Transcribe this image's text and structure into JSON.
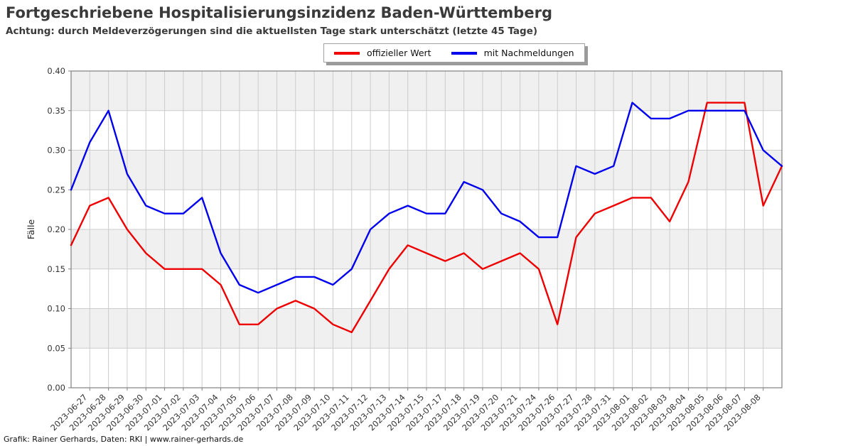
{
  "header": {
    "title": "Fortgeschriebene Hospitalisierungsinzidenz Baden-Württemberg",
    "subtitle": "Achtung: durch Meldeverzögerungen sind die aktuellsten Tage stark unterschätzt (letzte 45 Tage)"
  },
  "footer": {
    "credit": "Grafik: Rainer Gerhards, Daten: RKI | www.rainer-gerhards.de"
  },
  "colors": {
    "official": "#ee0000",
    "nachmeldungen": "#0000ee",
    "band_gray": "#f0f0f0",
    "gridline": "#cccccc",
    "spine": "#808080",
    "tick_text": "#333333"
  },
  "chart_data": {
    "type": "line",
    "title": "Fortgeschriebene Hospitalisierungsinzidenz Baden-Württemberg",
    "xlabel": "",
    "ylabel": "Fälle",
    "ylim": [
      0.0,
      0.4
    ],
    "y_tick_step": 0.05,
    "y_tick_labels": [
      "0.00",
      "0.05",
      "0.10",
      "0.15",
      "0.20",
      "0.25",
      "0.30",
      "0.35",
      "0.40"
    ],
    "grid": "on",
    "background_bands": "alternating gray between 0.05 gridline pairs",
    "legend_position": "top-center",
    "x_tick_labels": [
      "2023-06-27",
      "2023-06-28",
      "2023-06-29",
      "2023-06-30",
      "2023-07-01",
      "2023-07-02",
      "2023-07-03",
      "2023-07-04",
      "2023-07-05",
      "2023-07-06",
      "2023-07-07",
      "2023-07-08",
      "2023-07-09",
      "2023-07-10",
      "2023-07-11",
      "2023-07-12",
      "2023-07-13",
      "2023-07-14",
      "2023-07-15",
      "2023-07-17",
      "2023-07-18",
      "2023-07-19",
      "2023-07-20",
      "2023-07-21",
      "2023-07-24",
      "2023-07-26",
      "2023-07-27",
      "2023-07-28",
      "2023-07-31",
      "2023-08-01",
      "2023-08-02",
      "2023-08-03",
      "2023-08-04",
      "2023-08-05",
      "2023-08-06",
      "2023-08-07",
      "2023-08-08"
    ],
    "note": "39 plotted points: one unlabeled point at the left spine before 2023-06-27 and one unlabeled point at the right spine after 2023-08-08; label k belongs to point k+1",
    "series": [
      {
        "name": "offizieller Wert",
        "color": "#ee0000",
        "values": [
          0.18,
          0.23,
          0.24,
          0.2,
          0.17,
          0.15,
          0.15,
          0.15,
          0.13,
          0.08,
          0.08,
          0.1,
          0.11,
          0.1,
          0.08,
          0.07,
          0.11,
          0.15,
          0.18,
          0.17,
          0.16,
          0.17,
          0.15,
          0.16,
          0.17,
          0.15,
          0.08,
          0.19,
          0.22,
          0.23,
          0.24,
          0.24,
          0.21,
          0.26,
          0.36,
          0.36,
          0.36,
          0.23,
          0.28
        ]
      },
      {
        "name": "mit Nachmeldungen",
        "color": "#0000ee",
        "values": [
          0.25,
          0.31,
          0.35,
          0.27,
          0.23,
          0.22,
          0.22,
          0.24,
          0.17,
          0.13,
          0.12,
          0.13,
          0.14,
          0.14,
          0.13,
          0.15,
          0.2,
          0.22,
          0.23,
          0.22,
          0.22,
          0.26,
          0.25,
          0.22,
          0.21,
          0.19,
          0.19,
          0.28,
          0.27,
          0.28,
          0.36,
          0.34,
          0.34,
          0.35,
          0.35,
          0.35,
          0.35,
          0.3,
          0.28
        ]
      }
    ]
  }
}
